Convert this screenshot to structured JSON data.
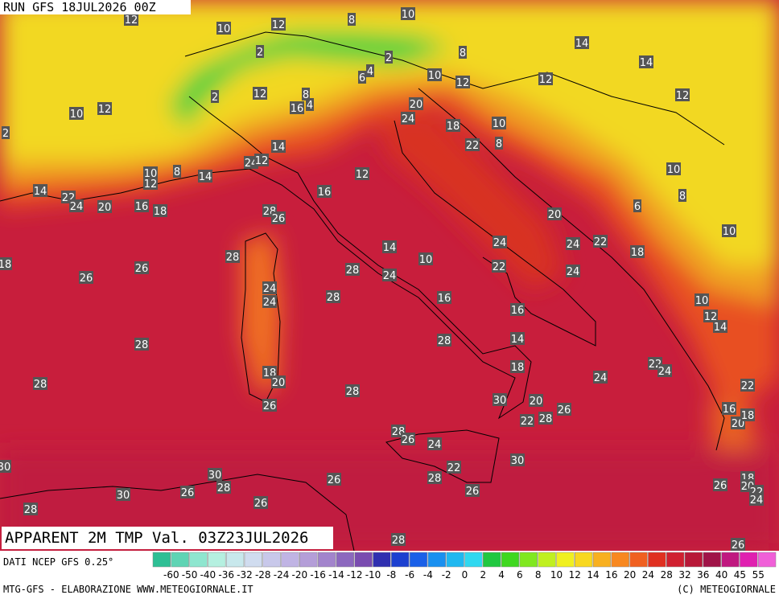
{
  "header": {
    "run": "RUN GFS 18JUL2026 00Z"
  },
  "title": "APPARENT 2M TMP Val. 03Z23JUL2026",
  "source": "DATI NCEP GFS 0.25°",
  "footer": {
    "left": "MTG-GFS - ELABORAZIONE WWW.METEOGIORNALE.IT",
    "right": "(C) METEOGIORNALE"
  },
  "colorbar": {
    "labels": [
      "-60",
      "-50",
      "-40",
      "-36",
      "-32",
      "-28",
      "-24",
      "-20",
      "-16",
      "-14",
      "-12",
      "-10",
      "-8",
      "-6",
      "-4",
      "-2",
      "0",
      "2",
      "4",
      "6",
      "8",
      "10",
      "12",
      "14",
      "16",
      "20",
      "24",
      "28",
      "32",
      "36",
      "40",
      "45",
      "55"
    ],
    "colors": [
      "#2ebf95",
      "#5fd4b4",
      "#8ee6cf",
      "#b5f0e0",
      "#c8e8ec",
      "#d0dcef",
      "#c8c8ea",
      "#c0b4e4",
      "#b49ed8",
      "#a284cc",
      "#8c68be",
      "#7a4cb0",
      "#3030b0",
      "#1c40d0",
      "#1a60e8",
      "#1a90f0",
      "#20b8f0",
      "#30d8f0",
      "#20c840",
      "#40d820",
      "#80e820",
      "#c0f020",
      "#f0f020",
      "#f8d820",
      "#f8b020",
      "#f88820",
      "#f06020",
      "#e03020",
      "#d02030",
      "#b81838",
      "#a01448",
      "#c01880",
      "#e020b0",
      "#f060d8"
    ]
  },
  "map_labels": [
    "12",
    "10",
    "12",
    "8",
    "10",
    "2",
    "2",
    "8",
    "14",
    "14",
    "10",
    "12",
    "12",
    "12",
    "4",
    "6",
    "12",
    "8",
    "16",
    "4",
    "2",
    "10",
    "12",
    "20",
    "24",
    "18",
    "10",
    "8",
    "22",
    "14",
    "24",
    "12",
    "10",
    "12",
    "8",
    "14",
    "12",
    "10",
    "8",
    "14",
    "22",
    "24",
    "20",
    "16",
    "18",
    "16",
    "28",
    "26",
    "20",
    "6",
    "28",
    "26",
    "26",
    "14",
    "10",
    "24",
    "24",
    "22",
    "18",
    "10",
    "28",
    "24",
    "22",
    "24",
    "24",
    "24",
    "28",
    "16",
    "16",
    "10",
    "12",
    "14",
    "28",
    "14",
    "28",
    "18",
    "24",
    "22",
    "24",
    "22",
    "28",
    "18",
    "20",
    "28",
    "30",
    "20",
    "26",
    "26",
    "28",
    "22",
    "16",
    "20",
    "18",
    "28",
    "26",
    "24",
    "22",
    "30",
    "30",
    "28",
    "26",
    "26",
    "28",
    "26",
    "30",
    "28",
    "26",
    "26",
    "18",
    "20",
    "22",
    "24",
    "28",
    "26",
    "30",
    "18",
    "2"
  ]
}
